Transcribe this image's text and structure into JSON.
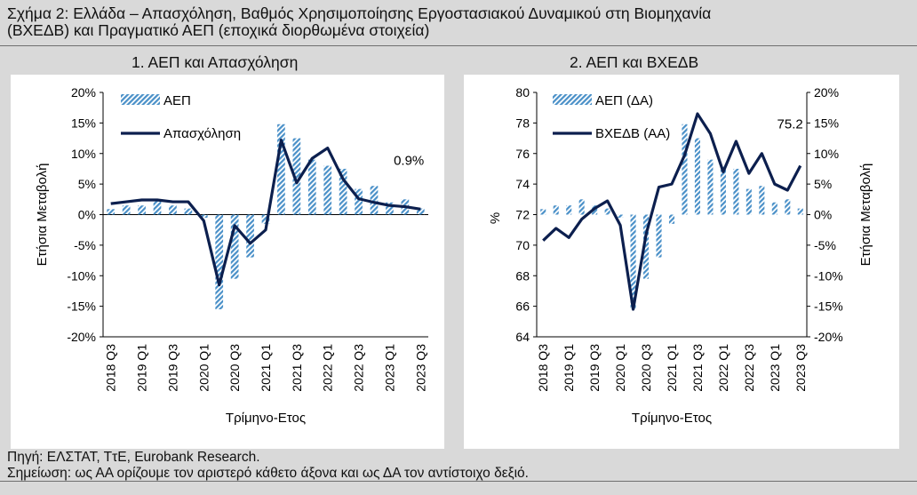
{
  "figure": {
    "title_line1": "Σχήμα 2: Ελλάδα – Απασχόληση, Βαθμός Χρησιμοποίησης Εργοστασιακού Δυναμικού στη Βιομηχανία",
    "title_line2": "(ΒΧΕΔΒ) και Πραγματικό ΑΕΠ (εποχικά διορθωμένα στοιχεία)",
    "source": "Πηγή: ΕΛΣΤΑΤ, ΤτΕ, Eurobank Research.",
    "note": "Σημείωση: ως ΑΑ ορίζουμε τον αριστερό κάθετο άξονα και ως ΔΑ τον αντίστοιχο δεξιό.",
    "colors": {
      "bar": "#4a90c8",
      "line": "#0c1f4e",
      "background": "#d9d9d9",
      "panel": "#ffffff"
    }
  },
  "chart_data": [
    {
      "type": "bar+line",
      "title": "1. ΑΕΠ και Απασχόληση",
      "xlabel": "Τρίμηνο-Ετος",
      "ylabel": "Ετήσια Μεταβολή",
      "ylim": [
        -20,
        20
      ],
      "yticks": [
        -20,
        -15,
        -10,
        -5,
        0,
        5,
        10,
        15,
        20
      ],
      "ytick_labels": [
        "-20%",
        "-15%",
        "-10%",
        "-5%",
        "0%",
        "5%",
        "10%",
        "15%",
        "20%"
      ],
      "x": [
        "2018 Q3",
        "2018 Q4",
        "2019 Q1",
        "2019 Q2",
        "2019 Q3",
        "2019 Q4",
        "2020 Q1",
        "2020 Q2",
        "2020 Q3",
        "2020 Q4",
        "2021 Q1",
        "2021 Q2",
        "2021 Q3",
        "2021 Q4",
        "2022 Q1",
        "2022 Q2",
        "2022 Q3",
        "2022 Q4",
        "2023 Q1",
        "2023 Q2",
        "2023 Q3"
      ],
      "xtick_labels": [
        "2018 Q3",
        "2019 Q1",
        "2019 Q3",
        "2020 Q1",
        "2020 Q3",
        "2021 Q1",
        "2021 Q3",
        "2022 Q1",
        "2022 Q3",
        "2023 Q1",
        "2023 Q3"
      ],
      "xtick_indices": [
        0,
        2,
        4,
        6,
        8,
        10,
        12,
        14,
        16,
        18,
        20
      ],
      "legend": "top-left",
      "grid": false,
      "series": [
        {
          "name": "ΑΕΠ",
          "type": "bar",
          "values": [
            0.9,
            1.5,
            1.5,
            2.5,
            1.5,
            1.0,
            -0.5,
            -15.5,
            -10.5,
            -7.0,
            -1.5,
            14.8,
            12.5,
            9.0,
            8.0,
            7.5,
            4.2,
            4.7,
            2.0,
            2.5,
            1.0
          ]
        },
        {
          "name": "Απασχόληση",
          "type": "line",
          "values": [
            1.8,
            2.1,
            2.4,
            2.4,
            2.1,
            2.1,
            -1.0,
            -11.5,
            -1.8,
            -4.7,
            -2.5,
            12.2,
            5.2,
            9.2,
            10.9,
            5.8,
            2.6,
            2.0,
            1.5,
            1.3,
            0.9
          ]
        }
      ],
      "annotation": {
        "text": "0.9%",
        "series": "Απασχόληση",
        "index": 20
      }
    },
    {
      "type": "bar+line",
      "title": "2. ΑΕΠ και ΒΧΕΔΒ",
      "xlabel": "Τρίμηνο-Ετος",
      "ylabel_left": "%",
      "ylabel_right": "Ετήσια Μεταβολή",
      "ylim_left": [
        64,
        80
      ],
      "yticks_left": [
        64,
        66,
        68,
        70,
        72,
        74,
        76,
        78,
        80
      ],
      "ytick_labels_left": [
        "64",
        "66",
        "68",
        "70",
        "72",
        "74",
        "76",
        "78",
        "80"
      ],
      "ylim_right": [
        -20,
        20
      ],
      "yticks_right": [
        -20,
        -15,
        -10,
        -5,
        0,
        5,
        10,
        15,
        20
      ],
      "ytick_labels_right": [
        "-20%",
        "-15%",
        "-10%",
        "-5%",
        "0%",
        "5%",
        "10%",
        "15%",
        "20%"
      ],
      "x": [
        "2018 Q3",
        "2018 Q4",
        "2019 Q1",
        "2019 Q2",
        "2019 Q3",
        "2019 Q4",
        "2020 Q1",
        "2020 Q2",
        "2020 Q3",
        "2020 Q4",
        "2021 Q1",
        "2021 Q2",
        "2021 Q3",
        "2021 Q4",
        "2022 Q1",
        "2022 Q2",
        "2022 Q3",
        "2022 Q4",
        "2023 Q1",
        "2023 Q2",
        "2023 Q3"
      ],
      "xtick_labels": [
        "2018 Q3",
        "2019 Q1",
        "2019 Q3",
        "2020 Q1",
        "2020 Q3",
        "2021 Q1",
        "2021 Q3",
        "2022 Q1",
        "2022 Q3",
        "2023 Q1",
        "2023 Q3"
      ],
      "xtick_indices": [
        0,
        2,
        4,
        6,
        8,
        10,
        12,
        14,
        16,
        18,
        20
      ],
      "legend": "top-left",
      "grid": false,
      "series": [
        {
          "name": "ΑΕΠ (ΔΑ)",
          "type": "bar",
          "axis": "right",
          "values": [
            0.9,
            1.5,
            1.5,
            2.5,
            1.5,
            1.0,
            -0.5,
            -15.5,
            -10.5,
            -7.0,
            -1.5,
            14.8,
            12.5,
            9.0,
            8.0,
            7.5,
            4.2,
            4.7,
            2.0,
            2.5,
            1.0
          ]
        },
        {
          "name": "ΒΧΕΔΒ (ΑΑ)",
          "type": "line",
          "axis": "left",
          "values": [
            70.3,
            71.1,
            70.5,
            71.7,
            72.4,
            72.9,
            71.3,
            65.8,
            70.7,
            73.8,
            74.0,
            75.9,
            78.6,
            77.3,
            74.8,
            76.8,
            74.7,
            76.0,
            74.0,
            73.6,
            75.2
          ]
        }
      ],
      "annotation": {
        "text": "75.2",
        "series": "ΒΧΕΔΒ (ΑΑ)",
        "index": 20
      }
    }
  ]
}
